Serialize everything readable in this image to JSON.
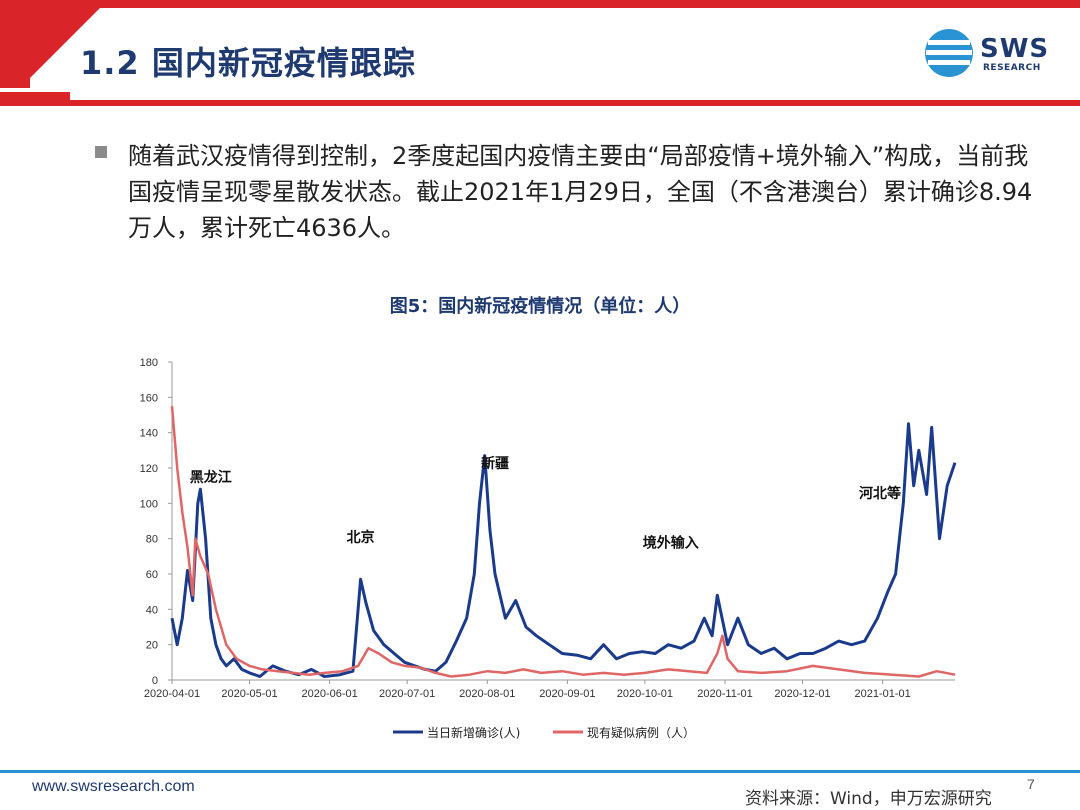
{
  "header": {
    "title": "1.2 国内新冠疫情跟踪",
    "logo_text": "SWS",
    "logo_subtext": "RESEARCH"
  },
  "bullet": {
    "text": "随着武汉疫情得到控制，2季度起国内疫情主要由“局部疫情+境外输入”构成，当前我国疫情呈现零星散发状态。截止2021年1月29日，全国（不含港澳台）累计确诊8.94万人，累计死亡4636人。"
  },
  "chart_title": "图5：国内新冠疫情情况（单位：人）",
  "chart_data": {
    "type": "line",
    "ylim": [
      0,
      180
    ],
    "yticks": [
      0,
      20,
      40,
      60,
      80,
      100,
      120,
      140,
      160,
      180
    ],
    "x_start": "2020-04-01",
    "x_end": "2021-01-29",
    "xtick_labels": [
      "2020-04-01",
      "2020-05-01",
      "2020-06-01",
      "2020-07-01",
      "2020-08-01",
      "2020-09-01",
      "2020-10-01",
      "2020-11-01",
      "2020-12-01",
      "2021-01-01"
    ],
    "grid": false,
    "legend_position": "bottom",
    "series": [
      {
        "name": "当日新增确诊(人)",
        "color": "#1a3a8c",
        "points": [
          [
            "2020-04-01",
            35
          ],
          [
            "2020-04-03",
            20
          ],
          [
            "2020-04-05",
            35
          ],
          [
            "2020-04-07",
            62
          ],
          [
            "2020-04-09",
            45
          ],
          [
            "2020-04-11",
            100
          ],
          [
            "2020-04-12",
            108
          ],
          [
            "2020-04-14",
            80
          ],
          [
            "2020-04-16",
            35
          ],
          [
            "2020-04-18",
            20
          ],
          [
            "2020-04-20",
            12
          ],
          [
            "2020-04-22",
            8
          ],
          [
            "2020-04-25",
            12
          ],
          [
            "2020-04-28",
            6
          ],
          [
            "2020-05-01",
            4
          ],
          [
            "2020-05-05",
            2
          ],
          [
            "2020-05-10",
            8
          ],
          [
            "2020-05-15",
            5
          ],
          [
            "2020-05-20",
            3
          ],
          [
            "2020-05-25",
            6
          ],
          [
            "2020-05-30",
            2
          ],
          [
            "2020-06-05",
            3
          ],
          [
            "2020-06-10",
            5
          ],
          [
            "2020-06-12",
            40
          ],
          [
            "2020-06-13",
            57
          ],
          [
            "2020-06-15",
            44
          ],
          [
            "2020-06-18",
            28
          ],
          [
            "2020-06-22",
            20
          ],
          [
            "2020-06-26",
            15
          ],
          [
            "2020-06-30",
            10
          ],
          [
            "2020-07-04",
            8
          ],
          [
            "2020-07-08",
            6
          ],
          [
            "2020-07-12",
            5
          ],
          [
            "2020-07-16",
            10
          ],
          [
            "2020-07-20",
            22
          ],
          [
            "2020-07-24",
            35
          ],
          [
            "2020-07-27",
            60
          ],
          [
            "2020-07-29",
            100
          ],
          [
            "2020-07-31",
            127
          ],
          [
            "2020-08-02",
            85
          ],
          [
            "2020-08-04",
            60
          ],
          [
            "2020-08-08",
            35
          ],
          [
            "2020-08-12",
            45
          ],
          [
            "2020-08-16",
            30
          ],
          [
            "2020-08-20",
            25
          ],
          [
            "2020-08-25",
            20
          ],
          [
            "2020-08-30",
            15
          ],
          [
            "2020-09-05",
            14
          ],
          [
            "2020-09-10",
            12
          ],
          [
            "2020-09-15",
            20
          ],
          [
            "2020-09-20",
            12
          ],
          [
            "2020-09-25",
            15
          ],
          [
            "2020-09-30",
            16
          ],
          [
            "2020-10-05",
            15
          ],
          [
            "2020-10-10",
            20
          ],
          [
            "2020-10-15",
            18
          ],
          [
            "2020-10-20",
            22
          ],
          [
            "2020-10-24",
            35
          ],
          [
            "2020-10-27",
            25
          ],
          [
            "2020-10-29",
            48
          ],
          [
            "2020-11-02",
            20
          ],
          [
            "2020-11-06",
            35
          ],
          [
            "2020-11-10",
            20
          ],
          [
            "2020-11-15",
            15
          ],
          [
            "2020-11-20",
            18
          ],
          [
            "2020-11-25",
            12
          ],
          [
            "2020-11-30",
            15
          ],
          [
            "2020-12-05",
            15
          ],
          [
            "2020-12-10",
            18
          ],
          [
            "2020-12-15",
            22
          ],
          [
            "2020-12-20",
            20
          ],
          [
            "2020-12-25",
            22
          ],
          [
            "2020-12-30",
            35
          ],
          [
            "2021-01-03",
            50
          ],
          [
            "2021-01-06",
            60
          ],
          [
            "2021-01-09",
            100
          ],
          [
            "2021-01-11",
            145
          ],
          [
            "2021-01-13",
            110
          ],
          [
            "2021-01-15",
            130
          ],
          [
            "2021-01-18",
            105
          ],
          [
            "2021-01-20",
            143
          ],
          [
            "2021-01-23",
            80
          ],
          [
            "2021-01-26",
            110
          ],
          [
            "2021-01-29",
            123
          ]
        ]
      },
      {
        "name": "现有疑似病例（人）",
        "color": "#e06666",
        "points": [
          [
            "2020-04-01",
            155
          ],
          [
            "2020-04-03",
            120
          ],
          [
            "2020-04-05",
            95
          ],
          [
            "2020-04-07",
            75
          ],
          [
            "2020-04-09",
            48
          ],
          [
            "2020-04-10",
            80
          ],
          [
            "2020-04-12",
            70
          ],
          [
            "2020-04-15",
            60
          ],
          [
            "2020-04-18",
            40
          ],
          [
            "2020-04-22",
            20
          ],
          [
            "2020-04-26",
            12
          ],
          [
            "2020-05-01",
            8
          ],
          [
            "2020-05-06",
            6
          ],
          [
            "2020-05-12",
            5
          ],
          [
            "2020-05-18",
            4
          ],
          [
            "2020-05-24",
            3
          ],
          [
            "2020-05-30",
            4
          ],
          [
            "2020-06-06",
            5
          ],
          [
            "2020-06-12",
            8
          ],
          [
            "2020-06-16",
            18
          ],
          [
            "2020-06-20",
            15
          ],
          [
            "2020-06-25",
            10
          ],
          [
            "2020-06-30",
            8
          ],
          [
            "2020-07-06",
            7
          ],
          [
            "2020-07-12",
            4
          ],
          [
            "2020-07-18",
            2
          ],
          [
            "2020-07-25",
            3
          ],
          [
            "2020-08-01",
            5
          ],
          [
            "2020-08-08",
            4
          ],
          [
            "2020-08-15",
            6
          ],
          [
            "2020-08-22",
            4
          ],
          [
            "2020-08-30",
            5
          ],
          [
            "2020-09-07",
            3
          ],
          [
            "2020-09-15",
            4
          ],
          [
            "2020-09-23",
            3
          ],
          [
            "2020-10-01",
            4
          ],
          [
            "2020-10-10",
            6
          ],
          [
            "2020-10-18",
            5
          ],
          [
            "2020-10-25",
            4
          ],
          [
            "2020-10-29",
            15
          ],
          [
            "2020-10-31",
            25
          ],
          [
            "2020-11-02",
            12
          ],
          [
            "2020-11-06",
            5
          ],
          [
            "2020-11-15",
            4
          ],
          [
            "2020-11-25",
            5
          ],
          [
            "2020-12-05",
            8
          ],
          [
            "2020-12-15",
            6
          ],
          [
            "2020-12-25",
            4
          ],
          [
            "2021-01-05",
            3
          ],
          [
            "2021-01-15",
            2
          ],
          [
            "2021-01-22",
            5
          ],
          [
            "2021-01-29",
            3
          ]
        ]
      }
    ],
    "annotations": [
      {
        "text": "黑龙江",
        "x": "2020-04-16",
        "y": 112
      },
      {
        "text": "北京",
        "x": "2020-06-13",
        "y": 78
      },
      {
        "text": "新疆",
        "x": "2020-08-04",
        "y": 120
      },
      {
        "text": "境外输入",
        "x": "2020-10-11",
        "y": 75
      },
      {
        "text": "河北等",
        "x": "2020-12-31",
        "y": 103
      }
    ]
  },
  "footer": {
    "url": "www.swsresearch.com",
    "source": "资料来源：Wind，申万宏源研究",
    "page": "7"
  }
}
